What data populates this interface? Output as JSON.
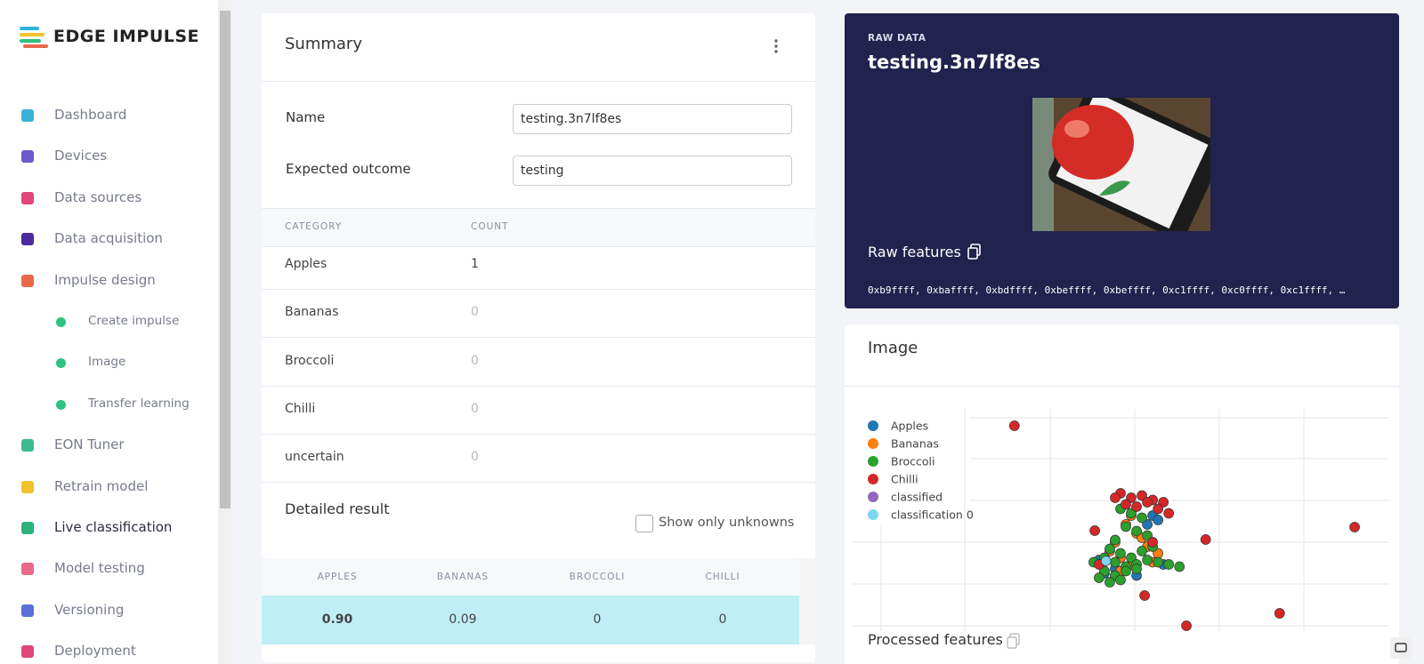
{
  "sidebar": {
    "logo": "EDGE IMPULSE",
    "nav": [
      {
        "label": "Dashboard"
      },
      {
        "label": "Devices"
      },
      {
        "label": "Data sources"
      },
      {
        "label": "Data acquisition"
      },
      {
        "label": "Impulse design",
        "children": [
          "Create impulse",
          "Image",
          "Transfer learning"
        ]
      },
      {
        "label": "EON Tuner"
      },
      {
        "label": "Retrain model"
      },
      {
        "label": "Live classification"
      },
      {
        "label": "Model testing"
      },
      {
        "label": "Versioning"
      },
      {
        "label": "Deployment"
      }
    ]
  },
  "summary": {
    "title": "Summary",
    "fields": [
      {
        "label": "Name",
        "value": "testing.3n7lf8es"
      },
      {
        "label": "Expected outcome",
        "value": "testing"
      }
    ],
    "table": {
      "headers": [
        "CATEGORY",
        "COUNT"
      ],
      "rows": [
        [
          "Apples",
          1
        ],
        [
          "Bananas",
          0
        ],
        [
          "Broccoli",
          0
        ],
        [
          "Chilli",
          0
        ],
        [
          "uncertain",
          0
        ]
      ]
    },
    "detailed_result": {
      "title": "Detailed result",
      "checkbox": "Show only unknowns",
      "headers": [
        "APPLES",
        "BANANAS",
        "BROCCOLI",
        "CHILLI"
      ],
      "rows": [
        [
          "0.90",
          0.09,
          0,
          0
        ]
      ]
    }
  },
  "raw_data": {
    "label": "RAW DATA",
    "title": "testing.3n7lf8es",
    "features_title": "Raw features",
    "features": "0xb9ffff, 0xbaffff, 0xbdffff, 0xbeffff, 0xbeffff, 0xc1ffff, 0xc0ffff, 0xc1ffff, …"
  },
  "image_panel": {
    "title": "Image",
    "processed_features": "Processed features",
    "chart_data": {
      "type": "scatter",
      "xlim": [
        0,
        100
      ],
      "ylim": [
        0,
        100
      ],
      "series": [
        {
          "name": "Apples",
          "color": "#1f77b4",
          "x": [
            56,
            57,
            55,
            47,
            49,
            58,
            53,
            46
          ],
          "values": [
            52,
            50,
            48,
            26,
            28,
            30,
            25,
            32
          ]
        },
        {
          "name": "Bananas",
          "color": "#ff7f0e",
          "x": [
            51,
            53,
            49,
            55,
            57,
            50,
            52,
            54,
            48,
            56,
            52,
            50
          ],
          "values": [
            48,
            44,
            40,
            38,
            35,
            33,
            30,
            42,
            36,
            31,
            52,
            27
          ]
        },
        {
          "name": "Broccoli",
          "color": "#2ca02c",
          "x": [
            50,
            52,
            54,
            51,
            53,
            55,
            49,
            48,
            50,
            52,
            54,
            56,
            47,
            49,
            51,
            53,
            45,
            47,
            49,
            51,
            55,
            57,
            59,
            61,
            46,
            48,
            50,
            53
          ],
          "values": [
            55,
            53,
            51,
            47,
            45,
            43,
            41,
            37,
            35,
            33,
            36,
            38,
            33,
            31,
            29,
            30,
            31,
            27,
            25,
            27,
            32,
            31,
            30,
            29,
            24,
            22,
            23,
            28
          ]
        },
        {
          "name": "Chilli",
          "color": "#d62728",
          "x": [
            50,
            52,
            54,
            56,
            58,
            51,
            53,
            55,
            57,
            49,
            59,
            45.2,
            30.2,
            93.7,
            65.9,
            54.5,
            79.7,
            62.3,
            46,
            56
          ],
          "values": [
            62,
            60,
            61,
            59,
            58,
            57,
            56,
            58,
            55,
            60,
            53,
            45.2,
            92.4,
            46.8,
            41.2,
            16,
            8,
            2.4,
            30,
            40
          ]
        },
        {
          "name": "classified",
          "color": "#9467bd",
          "x": [],
          "values": []
        },
        {
          "name": "classification 0",
          "color": "#7fd6f0",
          "x": [
            47.3
          ],
          "values": [
            31.6
          ]
        }
      ]
    }
  }
}
